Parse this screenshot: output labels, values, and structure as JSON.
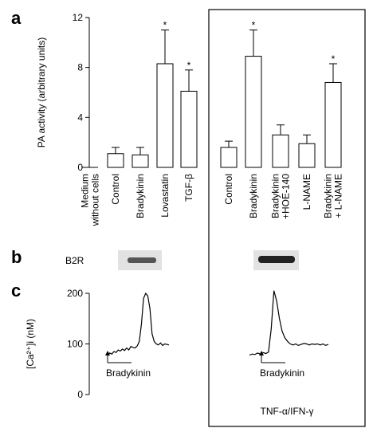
{
  "panels": {
    "a": "a",
    "b": "b",
    "c": "c"
  },
  "blot": {
    "label": "B2R"
  },
  "box_label": "TNF-α/IFN-γ",
  "chart_data": [
    {
      "type": "bar",
      "ylabel": "PA activity (arbitrary units)",
      "categories": [
        [
          "Medium",
          "without cells"
        ],
        [
          "Control"
        ],
        [
          "Bradykinin"
        ],
        [
          "Lovastatin"
        ],
        [
          "TGF-β"
        ],
        [
          "Control"
        ],
        [
          "Bradykinin"
        ],
        [
          "Bradykinin",
          "+HOE-140"
        ],
        [
          "L-NAME"
        ],
        [
          "Bradykinin",
          "+ L-NAME"
        ]
      ],
      "values": [
        0,
        1.1,
        1.0,
        8.3,
        6.1,
        1.6,
        8.9,
        2.6,
        1.9,
        6.8
      ],
      "errors": [
        null,
        0.5,
        0.6,
        2.7,
        1.7,
        0.5,
        2.1,
        0.8,
        0.7,
        1.5
      ],
      "annotations": [
        null,
        null,
        null,
        "*",
        "*",
        null,
        "*",
        null,
        null,
        "*"
      ],
      "color": "#ffffff",
      "ylim": [
        0,
        12
      ],
      "yticks": [
        0,
        4,
        8,
        12
      ]
    },
    {
      "type": "line",
      "ylabel": "[Ca²⁺]i (nM)",
      "series": [
        {
          "color": "#000000",
          "values": [
            78,
            82,
            80,
            85,
            83,
            88,
            86,
            90,
            87,
            92,
            88,
            95,
            93,
            92,
            96,
            105,
            140,
            190,
            200,
            195,
            170,
            120,
            105,
            100,
            98,
            102,
            97,
            100,
            99,
            98
          ]
        },
        {
          "color": "#000000",
          "values": [
            78,
            80,
            79,
            82,
            80,
            83,
            81,
            84,
            130,
            205,
            185,
            150,
            125,
            112,
            105,
            100,
            98,
            100,
            97,
            99,
            101,
            100,
            98,
            100,
            99,
            100,
            98,
            100,
            97,
            99
          ]
        }
      ],
      "annotations": [
        "Bradykinin",
        "Bradykinin"
      ],
      "ylim": [
        0,
        200
      ],
      "yticks": [
        0,
        100,
        200
      ]
    }
  ]
}
